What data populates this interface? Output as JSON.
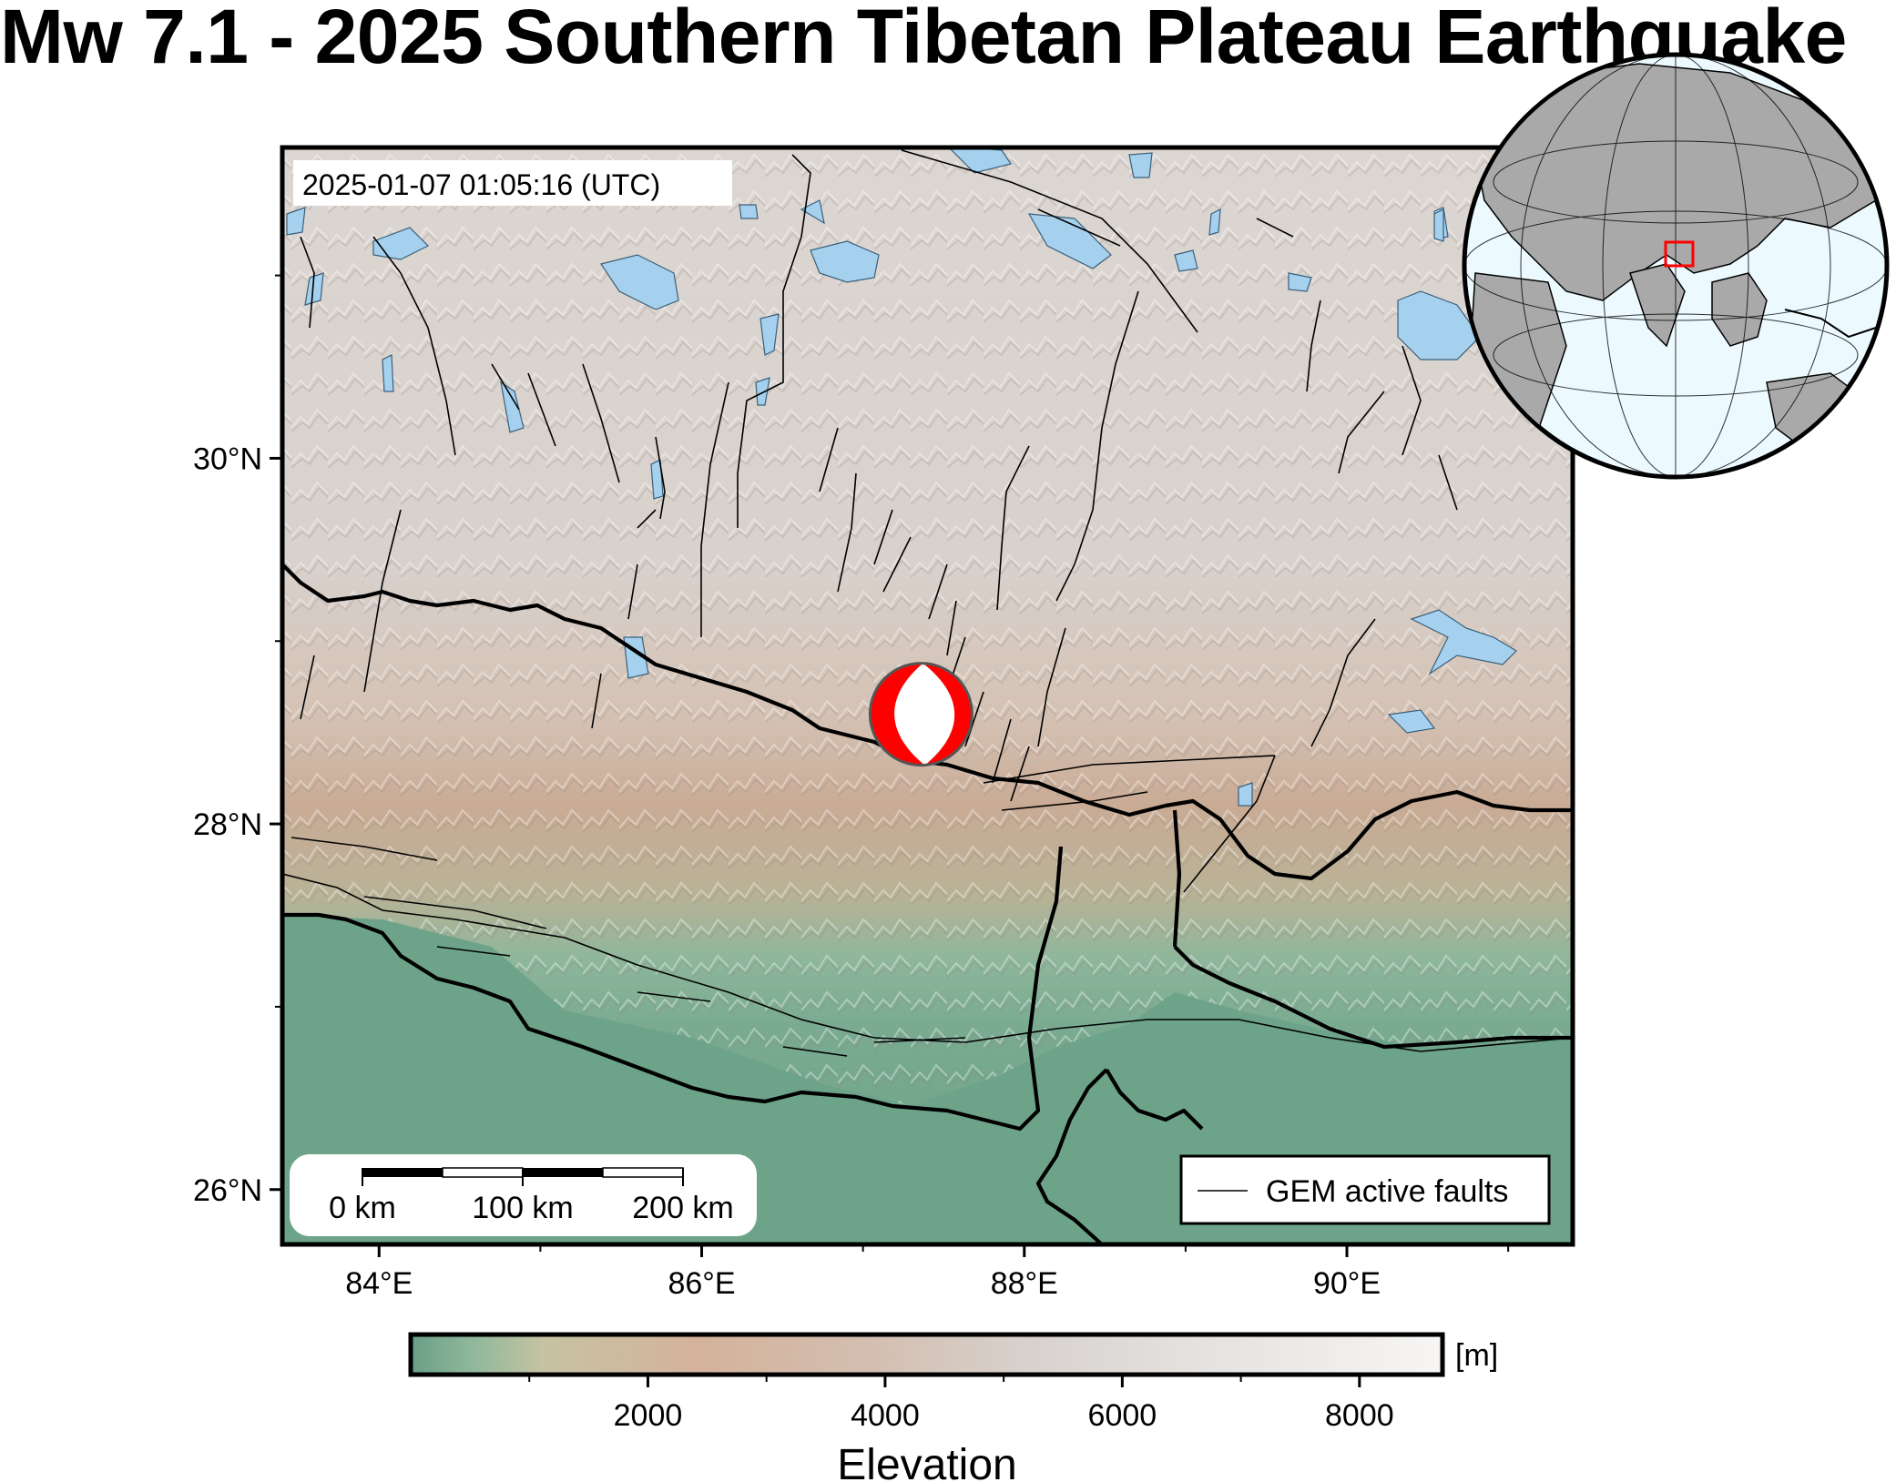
{
  "title": "Mw 7.1 - 2025 Southern Tibetan Plateau Earthquake",
  "event": {
    "timestamp_label": "2025-01-07 01:05:16 (UTC)",
    "lon": 87.36,
    "lat": 28.6,
    "focal_mechanism": "normal-faulting beachball",
    "colors": {
      "compression": "#ff0000",
      "dilatation": "#ffffff",
      "outline": "#555555"
    }
  },
  "map": {
    "lon_range": [
      83.4,
      91.4
    ],
    "lat_range": [
      25.7,
      31.7
    ],
    "lon_ticks": [
      {
        "value": 84,
        "label": "84°E"
      },
      {
        "value": 86,
        "label": "86°E"
      },
      {
        "value": 88,
        "label": "88°E"
      },
      {
        "value": 90,
        "label": "90°E"
      }
    ],
    "lat_ticks": [
      {
        "value": 26,
        "label": "26°N"
      },
      {
        "value": 28,
        "label": "28°N"
      },
      {
        "value": 30,
        "label": "30°N"
      }
    ],
    "colors": {
      "lake": "#a6d1ee",
      "lowland": "#6fa58a",
      "midland": "#d4b8a4",
      "highland": "#d9d3cf",
      "peaks": "#f0eeec"
    }
  },
  "scale_bar": {
    "labels": [
      "0 km",
      "100 km",
      "200 km"
    ]
  },
  "legend": {
    "entries": [
      {
        "label": "GEM active faults"
      }
    ]
  },
  "inset": {
    "description_icon": "globe-icon",
    "box_color": "#ff0000"
  },
  "colorbar": {
    "title": "Elevation",
    "unit": "[m]",
    "range": [
      0,
      8700
    ],
    "ticks": [
      {
        "value": 2000,
        "label": "2000"
      },
      {
        "value": 4000,
        "label": "4000"
      },
      {
        "value": 6000,
        "label": "6000"
      },
      {
        "value": 8000,
        "label": "8000"
      }
    ]
  }
}
